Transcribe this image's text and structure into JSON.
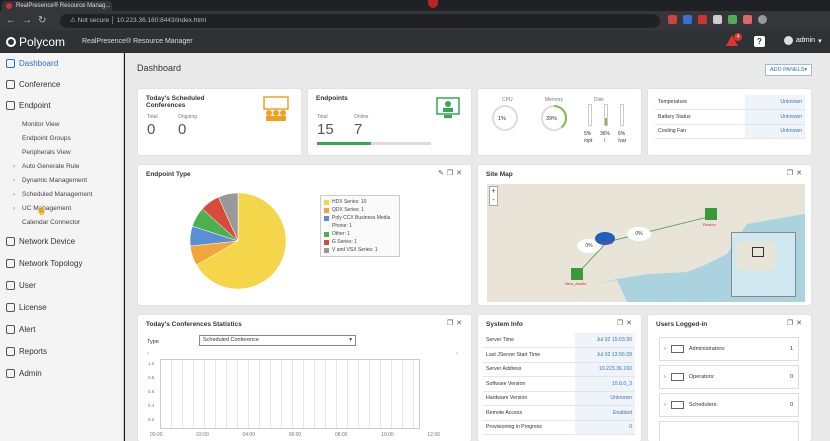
{
  "browser": {
    "tab_title": "RealPresence® Resource Manag...",
    "not_secure": "Not secure",
    "url": "10.223.36.160:8443/index.html"
  },
  "app": {
    "logo": "Polycom",
    "name": "RealPresence® Resource Manager",
    "alerts": "4",
    "user": "admin"
  },
  "sidebar": {
    "items": [
      {
        "label": "Dashboard",
        "icon": "dashboard-icon"
      },
      {
        "label": "Conference",
        "icon": "conference-icon"
      },
      {
        "label": "Endpoint",
        "icon": "endpoint-icon"
      },
      {
        "label": "Network Device",
        "icon": "network-device-icon"
      },
      {
        "label": "Network Topology",
        "icon": "topology-icon"
      },
      {
        "label": "User",
        "icon": "user-icon"
      },
      {
        "label": "License",
        "icon": "license-icon"
      },
      {
        "label": "Alert",
        "icon": "alert-icon"
      },
      {
        "label": "Reports",
        "icon": "reports-icon"
      },
      {
        "label": "Admin",
        "icon": "admin-icon"
      }
    ],
    "endpoint_sub": [
      "Monitor View",
      "Endpoint Groups",
      "Peripherals View",
      "Auto Generate Rule",
      "Dynamic Management",
      "Scheduled Management",
      "UC Management",
      "Calendar Connector"
    ]
  },
  "dashboard": {
    "title": "Dashboard",
    "add_panels": "ADD PANELS▾"
  },
  "scheduled": {
    "title": "Today's Scheduled Conferences",
    "total_label": "Total",
    "total": "0",
    "ongoing_label": "Ongoing",
    "ongoing": "0"
  },
  "endpoints": {
    "title": "Endpoints",
    "total_label": "Total",
    "total": "15",
    "online_label": "Online",
    "online": "7",
    "online_fraction": 0.47
  },
  "resources": {
    "cpu_label": "CPU",
    "cpu": "1%",
    "memory_label": "Memory",
    "memory": "39%",
    "disk_label": "Disk",
    "disk_opt": "5%",
    "disk_root": "36%",
    "disk_var": "6%",
    "opt": "/opt",
    "root": "/",
    "var": "/var"
  },
  "hw": {
    "rows": [
      {
        "k": "Temperature",
        "v": "Unknown"
      },
      {
        "k": "Battery Status",
        "v": "Unknown"
      },
      {
        "k": "Cooling Fan",
        "v": "Unknown"
      }
    ]
  },
  "endpoint_type": {
    "title": "Endpoint Type"
  },
  "chart_data": {
    "type": "pie",
    "categories": [
      "HDX Series",
      "QDX Series",
      "Poly CCX Business Media Phone",
      "Other",
      "G Series",
      "V and VSX Series"
    ],
    "values": [
      10,
      1,
      1,
      1,
      1,
      1
    ],
    "legend": [
      "HDX Series: 10",
      "QDX Series: 1",
      "Poly CCX Business Media Phone: 1",
      "Other: 1",
      "G Series: 1",
      "V and VSX Series: 1"
    ],
    "colors": [
      "#f5d54a",
      "#f0a63a",
      "#5a8fd6",
      "#4caf50",
      "#d94a3a",
      "#999999"
    ]
  },
  "site_map": {
    "title": "Site Map",
    "zoom_in": "+",
    "zoom_out": "-",
    "pct1": "0%",
    "pct2": "0%",
    "pct3": "0%",
    "site1": "Jacinto",
    "site2": "Reston",
    "site3": "New_Austin"
  },
  "conf_stats": {
    "title": "Today's Conferences Statistics",
    "type_label": "Type",
    "type_value": "Scheduled Conference",
    "y_ticks": [
      "1.0",
      "0.8",
      "0.6",
      "0.4",
      "0.2"
    ],
    "x_ticks": [
      "00:00",
      "02:00",
      "04:00",
      "06:00",
      "08:00",
      "10:00",
      "12:00"
    ]
  },
  "system_info": {
    "title": "System Info",
    "rows": [
      {
        "k": "Server Time",
        "v": "Jul 02 15:03:30"
      },
      {
        "k": "Last JServer Start Time",
        "v": "Jul 02 13:56:28"
      },
      {
        "k": "Server Address",
        "v": "10.223.36.160"
      },
      {
        "k": "Software Version",
        "v": "10.8.0_3"
      },
      {
        "k": "Hardware Version",
        "v": "Unknown"
      },
      {
        "k": "Remote Access",
        "v": "Enabled"
      },
      {
        "k": "Provisioning in Progress",
        "v": "0"
      }
    ]
  },
  "users_logged": {
    "title": "Users Logged-in",
    "rows": [
      {
        "label": "Administrators:",
        "count": "1"
      },
      {
        "label": "Operators:",
        "count": "0"
      },
      {
        "label": "Schedulers:",
        "count": "0"
      }
    ]
  }
}
